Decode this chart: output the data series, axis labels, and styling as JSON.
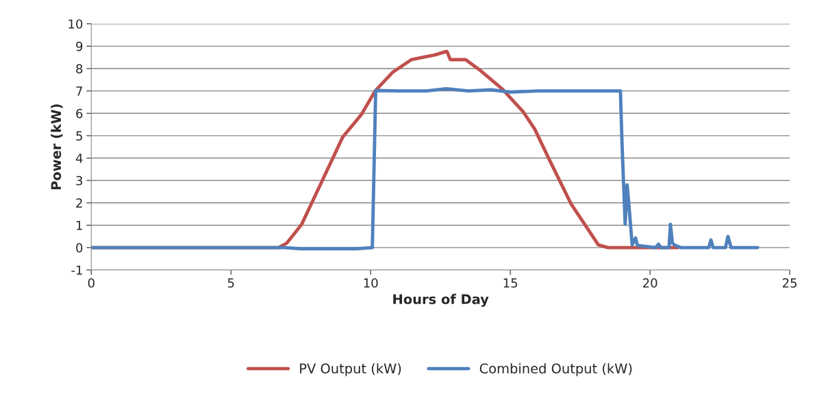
{
  "chart_data": {
    "type": "line",
    "xlabel": "Hours of Day",
    "ylabel": "Power (kW)",
    "xlim": [
      0,
      25
    ],
    "xticks": [
      0,
      5,
      10,
      15,
      20,
      25
    ],
    "ylim": [
      -1,
      10
    ],
    "yticks": [
      -1,
      0,
      1,
      2,
      3,
      4,
      5,
      6,
      7,
      8,
      9,
      10
    ],
    "grid": "y",
    "legend": "bottom",
    "marker": "none",
    "line_style": "solid",
    "series": [
      {
        "name": "PV Output (kW)",
        "color": "#c0504d",
        "x": [
          0,
          3,
          6.7,
          7.0,
          7.53,
          8.27,
          9.0,
          9.67,
          10.16,
          10.8,
          11.46,
          12.27,
          12.73,
          12.85,
          13.4,
          13.9,
          14.72,
          15.46,
          15.87,
          16.36,
          17.17,
          18.15,
          18.5,
          21
        ],
        "values": [
          0,
          0,
          0,
          0.2,
          1.04,
          3.0,
          4.94,
          5.95,
          7.0,
          7.85,
          8.4,
          8.6,
          8.77,
          8.4,
          8.4,
          7.94,
          7.08,
          6.07,
          5.3,
          4.02,
          1.96,
          0.12,
          0,
          0
        ]
      },
      {
        "name": "Combined Output (kW)",
        "color": "#4f81bd",
        "x": [
          0,
          3,
          6.9,
          7.5,
          8.5,
          9.5,
          10.06,
          10.18,
          11,
          12,
          12.7,
          13.5,
          14.3,
          15,
          16,
          17,
          18,
          18.94,
          18.99,
          19.02,
          19.11,
          19.18,
          19.24,
          19.36,
          19.48,
          19.55,
          20.2,
          20.3,
          20.4,
          20.68,
          20.73,
          20.8,
          20.9,
          21.1,
          22.1,
          22.18,
          22.26,
          22.7,
          22.79,
          22.9,
          23.85
        ],
        "values": [
          0,
          0,
          0,
          -0.05,
          -0.05,
          -0.05,
          0,
          7.02,
          7.0,
          7.0,
          7.1,
          7.0,
          7.05,
          6.95,
          7.0,
          7.0,
          7.0,
          7.0,
          4.94,
          3.9,
          1.04,
          2.8,
          1.96,
          0.12,
          0.43,
          0.1,
          0,
          0.15,
          0,
          0,
          1.04,
          0.2,
          0.1,
          0,
          0,
          0.34,
          0,
          0,
          0.5,
          0,
          0
        ]
      }
    ]
  }
}
